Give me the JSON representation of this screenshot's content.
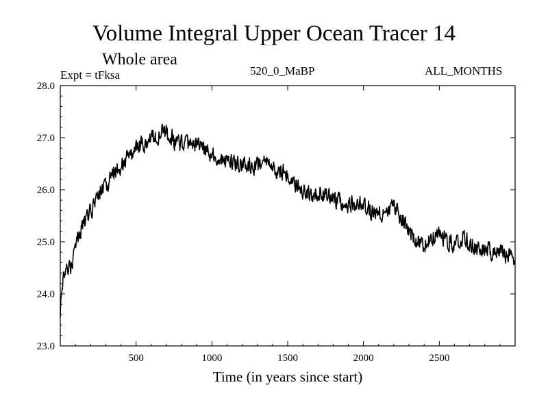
{
  "chart_data": {
    "type": "line",
    "title": "Volume Integral Upper Ocean Tracer 14",
    "subtitle": "Whole area",
    "experiment": "Expt = tFksa",
    "run_label": "520_0_MaBP",
    "period_label": "ALL_MONTHS",
    "xlabel": "Time (in years since start)",
    "ylabel": "",
    "xlim": [
      0,
      3000
    ],
    "ylim": [
      23.0,
      28.0
    ],
    "x_ticks": [
      500,
      1000,
      1500,
      2000,
      2500
    ],
    "x_tick_labels": [
      "500",
      "1000",
      "1500",
      "2000",
      "2500"
    ],
    "y_ticks": [
      23.0,
      24.0,
      25.0,
      26.0,
      27.0,
      28.0
    ],
    "y_tick_labels": [
      "23.0",
      "24.0",
      "25.0",
      "26.0",
      "27.0",
      "28.0"
    ],
    "grid": false,
    "series": [
      {
        "name": "Tracer 14",
        "x": [
          0,
          20,
          40,
          60,
          80,
          100,
          120,
          140,
          160,
          180,
          200,
          250,
          300,
          350,
          400,
          450,
          500,
          550,
          600,
          650,
          700,
          750,
          800,
          850,
          900,
          950,
          1000,
          1050,
          1100,
          1150,
          1200,
          1250,
          1300,
          1350,
          1400,
          1450,
          1500,
          1550,
          1600,
          1650,
          1700,
          1750,
          1800,
          1850,
          1900,
          1950,
          2000,
          2050,
          2100,
          2150,
          2200,
          2250,
          2300,
          2350,
          2400,
          2450,
          2500,
          2550,
          2600,
          2650,
          2700,
          2750,
          2800,
          2850,
          2900,
          2950,
          3000
        ],
        "values": [
          23.7,
          24.4,
          24.5,
          24.5,
          24.6,
          24.9,
          25.1,
          25.3,
          25.4,
          25.5,
          25.6,
          25.9,
          26.1,
          26.3,
          26.45,
          26.6,
          26.75,
          26.9,
          27.0,
          27.05,
          27.1,
          26.95,
          26.85,
          26.85,
          26.9,
          26.8,
          26.7,
          26.6,
          26.55,
          26.5,
          26.5,
          26.45,
          26.5,
          26.5,
          26.4,
          26.35,
          26.3,
          26.1,
          25.95,
          25.9,
          25.95,
          25.9,
          25.85,
          25.75,
          25.7,
          25.75,
          25.65,
          25.6,
          25.55,
          25.6,
          25.65,
          25.5,
          25.2,
          25.0,
          24.95,
          25.1,
          25.15,
          25.05,
          24.95,
          25.1,
          25.0,
          24.85,
          24.9,
          24.8,
          24.85,
          24.75,
          24.7
        ],
        "noise_amplitude": 0.15
      }
    ]
  }
}
